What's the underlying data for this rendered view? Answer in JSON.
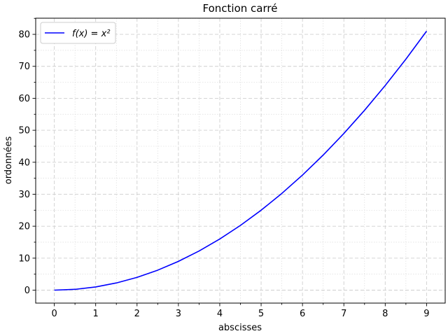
{
  "chart_data": {
    "type": "line",
    "title": "Fonction carré",
    "xlabel": "abscisses",
    "ylabel": "ordonnées",
    "xlim": [
      -0.45,
      9.45
    ],
    "ylim": [
      -4.05,
      85.05
    ],
    "x_ticks": [
      0,
      1,
      2,
      3,
      4,
      5,
      6,
      7,
      8,
      9
    ],
    "y_ticks": [
      0,
      10,
      20,
      30,
      40,
      50,
      60,
      70,
      80
    ],
    "x_minor_step": 0.5,
    "y_minor_step": 5,
    "grid": true,
    "legend_position": "top-left",
    "series": [
      {
        "name": "f(x) = x²",
        "color": "#0000ff",
        "x": [
          0,
          0.5,
          1,
          1.5,
          2,
          2.5,
          3,
          3.5,
          4,
          4.5,
          5,
          5.5,
          6,
          6.5,
          7,
          7.5,
          8,
          8.5,
          9
        ],
        "y": [
          0,
          0.25,
          1,
          2.25,
          4,
          6.25,
          9,
          12.25,
          16,
          20.25,
          25,
          30.25,
          36,
          42.25,
          49,
          56.25,
          64,
          72.25,
          81
        ]
      }
    ]
  }
}
